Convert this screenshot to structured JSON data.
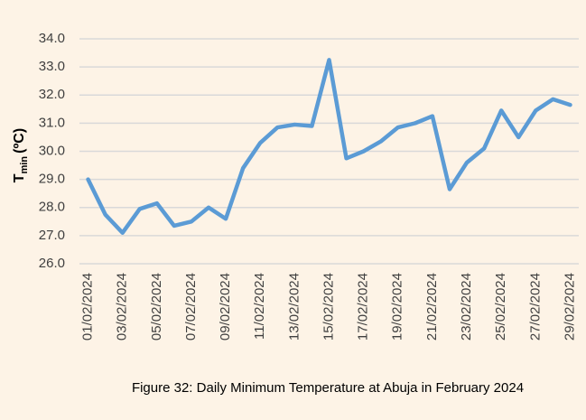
{
  "chart_data": {
    "type": "line",
    "y_label": "T",
    "y_label_sub": "min",
    "y_label_unit": "(ºC)",
    "caption": "Figure 32: Daily Minimum Temperature at Abuja in February 2024",
    "categories": [
      "01/02/2024",
      null,
      "03/02/2024",
      null,
      "05/02/2024",
      null,
      "07/02/2024",
      null,
      "09/02/2024",
      null,
      "11/02/2024",
      null,
      "13/02/2024",
      null,
      "15/02/2024",
      null,
      "17/02/2024",
      null,
      "19/02/2024",
      null,
      "21/02/2024",
      null,
      "23/02/2024",
      null,
      "25/02/2024",
      null,
      "27/02/2024",
      null,
      "29/02/2024"
    ],
    "series": [
      {
        "name": "Tmin",
        "color": "#5b9bd5",
        "values": [
          29.0,
          27.75,
          27.1,
          27.95,
          28.15,
          27.35,
          27.5,
          28.0,
          27.6,
          29.4,
          30.3,
          30.85,
          30.95,
          30.9,
          33.25,
          29.75,
          30.0,
          30.35,
          30.85,
          31.0,
          31.25,
          28.65,
          29.6,
          30.1,
          31.45,
          30.5,
          31.45,
          31.85,
          31.65
        ]
      }
    ],
    "ylim": [
      26,
      34
    ],
    "yticks": [
      {
        "value": 26,
        "label": "26.0"
      },
      {
        "value": 27,
        "label": "27.0"
      },
      {
        "value": 28,
        "label": "28.0"
      },
      {
        "value": 29,
        "label": "29.0"
      },
      {
        "value": 30,
        "label": "30.0"
      },
      {
        "value": 31,
        "label": "31.0"
      },
      {
        "value": 32,
        "label": "32.0"
      },
      {
        "value": 33,
        "label": "33.0"
      },
      {
        "value": 34,
        "label": "34.0"
      }
    ],
    "grid": true
  }
}
